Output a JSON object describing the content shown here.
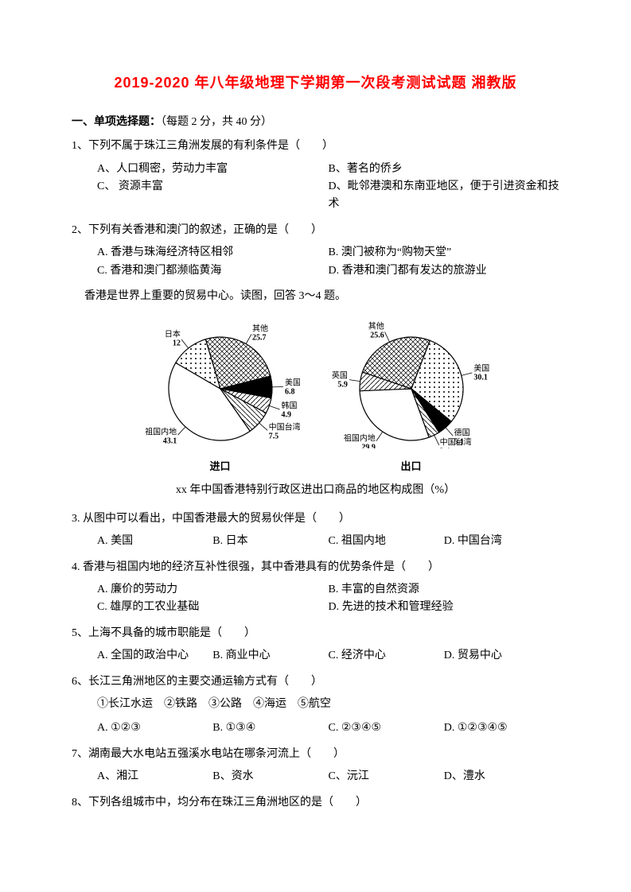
{
  "title_color": "#ff0000",
  "title": "2019-2020 年八年级地理下学期第一次段考测试试题 湘教版",
  "section1_label": "一、单项选择题：",
  "section1_note": "（每题 2 分，共 40 分）",
  "q1": {
    "text": "1、下列不属于珠江三角洲发展的有利条件是（　　）",
    "A": "A、人口稠密，劳动力丰富",
    "B": "B、著名的侨乡",
    "C": "C、 资源丰富",
    "D": "D、毗邻港澳和东南亚地区，便于引进资金和技术"
  },
  "q2": {
    "text": "2、下列有关香港和澳门的叙述，正确的是（　　）",
    "A": "A. 香港与珠海经济特区相邻",
    "B": "B. 澳门被称为“购物天堂”",
    "C": "C. 香港和澳门都濒临黄海",
    "D": "D. 香港和澳门都有发达的旅游业"
  },
  "intro34": "香港是世界上重要的贸易中心。读图，回答 3～4 题。",
  "caption34": "xx 年中国香港特别行政区进出口商品的地区构成图（%）",
  "pie_import": {
    "label": "进口",
    "radius": 65,
    "bg": "#ffffff",
    "stroke": "#000000",
    "slices": [
      {
        "name": "祖国内地",
        "value": 43.1,
        "fill": "#ffffff",
        "hatch": "none"
      },
      {
        "name": "日本",
        "value": 12.0,
        "fill": "#ffffff",
        "hatch": "dots"
      },
      {
        "name": "其他",
        "value": 25.7,
        "fill": "#ffffff",
        "hatch": "cross"
      },
      {
        "name": "美国",
        "value": 6.8,
        "fill": "#000000",
        "hatch": "none"
      },
      {
        "name": "韩国",
        "value": 4.9,
        "fill": "#ffffff",
        "hatch": "diag"
      },
      {
        "name": "中国台湾",
        "value": 7.5,
        "fill": "#ffffff",
        "hatch": "hdiag"
      }
    ]
  },
  "pie_export": {
    "label": "出口",
    "radius": 65,
    "bg": "#ffffff",
    "stroke": "#000000",
    "slices": [
      {
        "name": "祖国内地",
        "value": 29.9,
        "fill": "#ffffff",
        "hatch": "none"
      },
      {
        "name": "英国",
        "value": 5.9,
        "fill": "#ffffff",
        "hatch": "diag"
      },
      {
        "name": "其他",
        "value": 25.6,
        "fill": "#ffffff",
        "hatch": "cross"
      },
      {
        "name": "美国",
        "value": 30.1,
        "fill": "#ffffff",
        "hatch": "dots"
      },
      {
        "name": "德国",
        "value": 5.1,
        "fill": "#000000",
        "hatch": "none"
      },
      {
        "name": "中国台湾",
        "value": 3.4,
        "fill": "#ffffff",
        "hatch": "hdiag"
      }
    ]
  },
  "q3": {
    "text": "3. 从图中可以看出，中国香港最大的贸易伙伴是（　　）",
    "A": "A. 美国",
    "B": "B. 日本",
    "C": "C. 祖国内地",
    "D": "D. 中国台湾"
  },
  "q4": {
    "text": "4. 香港与祖国内地的经济互补性很强，其中香港具有的优势条件是（　　）",
    "A": "A. 廉价的劳动力",
    "B": "B. 丰富的自然资源",
    "C": "C. 雄厚的工农业基础",
    "D": "D. 先进的技术和管理经验"
  },
  "q5": {
    "text": "5、上海不具备的城市职能是（　　）",
    "A": "A. 全国的政治中心",
    "B": "B. 商业中心",
    "C": "C. 经济中心",
    "D": "D. 贸易中心"
  },
  "q6": {
    "text": "6、长江三角洲地区的主要交通运输方式有（　　）",
    "line": "①长江水运　②铁路　③公路　④海运　⑤航空",
    "A": "A. ①②③",
    "B": "B. ①③④",
    "C": "C. ②③④⑤",
    "D": "D. ①②③④⑤"
  },
  "q7": {
    "text": "7、湖南最大水电站五强溪水电站在哪条河流上（　　）",
    "A": "A、湘江",
    "B": "B、资水",
    "C": "C、沅江",
    "D": "D、澧水"
  },
  "q8": {
    "text": "8、下列各组城市中，均分布在珠江三角洲地区的是（　　）"
  }
}
